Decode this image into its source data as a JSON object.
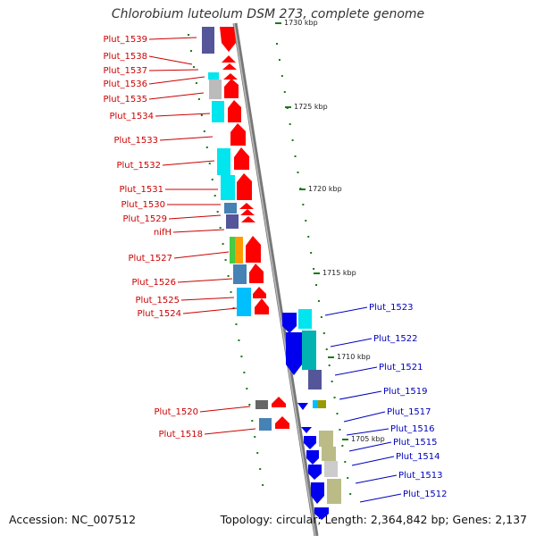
{
  "title": "Chlorobium luteolum DSM 273, complete genome",
  "footer": {
    "accession": "Accession: NC_007512",
    "stats": "Topology: circular; Length: 2,364,842 bp; Genes: 2,137"
  },
  "colors": {
    "left_label": "#cc0000",
    "right_label": "#0000bb",
    "tick": "#1a7a1a",
    "backbone": "#777777"
  },
  "kbp_marks": [
    "1730 kbp",
    "1725 kbp",
    "1720 kbp",
    "1715 kbp",
    "1710 kbp",
    "1705 kbp"
  ],
  "left_genes": [
    "Plut_1539",
    "Plut_1538",
    "Plut_1537",
    "Plut_1536",
    "Plut_1535",
    "Plut_1534",
    "Plut_1533",
    "Plut_1532",
    "Plut_1531",
    "Plut_1530",
    "Plut_1529",
    "nifH",
    "Plut_1527",
    "Plut_1526",
    "Plut_1525",
    "Plut_1524",
    "Plut_1520",
    "Plut_1518"
  ],
  "right_genes": [
    "Plut_1523",
    "Plut_1522",
    "Plut_1521",
    "Plut_1519",
    "Plut_1517",
    "Plut_1516",
    "Plut_1515",
    "Plut_1514",
    "Plut_1513",
    "Plut_1512"
  ]
}
